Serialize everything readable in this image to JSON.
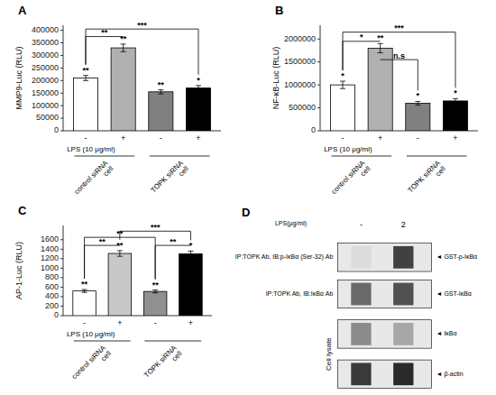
{
  "chart_data": [
    {
      "type": "bar",
      "title": "A",
      "ylabel": "MMP9-Luc (RLU)",
      "xlabel": "LPS (10 μg/ml)",
      "categories": [
        "-",
        "+",
        "-",
        "+"
      ],
      "values": [
        210000,
        330000,
        155000,
        170000
      ],
      "errors": [
        10000,
        15000,
        8000,
        10000
      ],
      "colors": [
        "white",
        "#b0b0b0",
        "#808080",
        "black"
      ],
      "ylim": [
        0,
        420000
      ],
      "yticks": [
        0,
        50000,
        100000,
        150000,
        200000,
        250000,
        300000,
        350000,
        400000
      ],
      "group_labels": [
        "control siRNA\ncell",
        "TOPK siRNA\ncell"
      ],
      "annotations": [
        "**",
        "**",
        "**",
        "*"
      ],
      "brackets": [
        {
          "b1": 1,
          "b2": 2,
          "label": "**",
          "height": 375000
        },
        {
          "b1": 1,
          "b2": 4,
          "label": "***",
          "height": 405000
        }
      ]
    },
    {
      "type": "bar",
      "title": "B",
      "ylabel": "NF-κB-Luc (RLU)",
      "xlabel": "LPS (10 μg/ml)",
      "categories": [
        "-",
        "+",
        "-",
        "+"
      ],
      "values": [
        1000000,
        1800000,
        600000,
        650000
      ],
      "errors": [
        80000,
        100000,
        40000,
        50000
      ],
      "colors": [
        "white",
        "#b0b0b0",
        "#808080",
        "black"
      ],
      "ylim": [
        0,
        2300000
      ],
      "yticks": [
        0,
        500000,
        1000000,
        1500000,
        2000000
      ],
      "group_labels": [
        "control siRNA\ncell",
        "TOPK siRNA\ncell"
      ],
      "annotations": [
        "*",
        "**",
        "*",
        "*"
      ],
      "brackets": [
        {
          "b1": 1,
          "b2": 2,
          "label": "*",
          "height": 1950000
        },
        {
          "b1": 2,
          "b2": 3,
          "label": "n.s",
          "height": 1550000
        },
        {
          "b1": 1,
          "b2": 4,
          "label": "***",
          "height": 2150000
        }
      ]
    },
    {
      "type": "bar",
      "title": "C",
      "ylabel": "AP-1-Luc (RLU)",
      "xlabel": "LPS (10 μg/ml)",
      "categories": [
        "-",
        "+",
        "-",
        "+"
      ],
      "values": [
        520,
        1310,
        510,
        1300
      ],
      "errors": [
        30,
        60,
        30,
        60
      ],
      "colors": [
        "white",
        "#c8c8c8",
        "#909090",
        "black"
      ],
      "ylim": [
        0,
        1900
      ],
      "yticks": [
        0,
        200,
        400,
        600,
        800,
        1000,
        1200,
        1400,
        1600
      ],
      "group_labels": [
        "control siRNA\ncell",
        "TOPK siRNA\ncell"
      ],
      "annotations": [
        "**",
        "**",
        "**",
        "*"
      ],
      "brackets": [
        {
          "b1": 1,
          "b2": 2,
          "label": "**",
          "height": 1480
        },
        {
          "b1": 3,
          "b2": 4,
          "label": "**",
          "height": 1480
        },
        {
          "b1": 1,
          "b2": 3,
          "label": "**",
          "height": 1650
        },
        {
          "b1": 2,
          "b2": 4,
          "label": "***",
          "height": 1780
        }
      ]
    },
    {
      "type": "blot",
      "title": "D",
      "xlabel": "LPS(μg/ml)",
      "categories": [
        "-",
        "2"
      ],
      "series": [
        {
          "name": "◄ GST-p-IκBα",
          "label": "IP:TOPK Ab, IB:p-IκBα (Ser-32) Ab",
          "values": [
            0.05,
            0.72
          ]
        },
        {
          "name": "◄ GST-IκBα",
          "label": "IP:TOPK Ab, IB:IκBα Ab",
          "values": [
            0.55,
            0.65
          ]
        },
        {
          "name": "◄ IκBα",
          "values": [
            0.4,
            0.28
          ]
        },
        {
          "name": "◄ β-actin",
          "values": [
            0.75,
            0.82
          ]
        }
      ],
      "group_label": "Cell lysate"
    }
  ]
}
